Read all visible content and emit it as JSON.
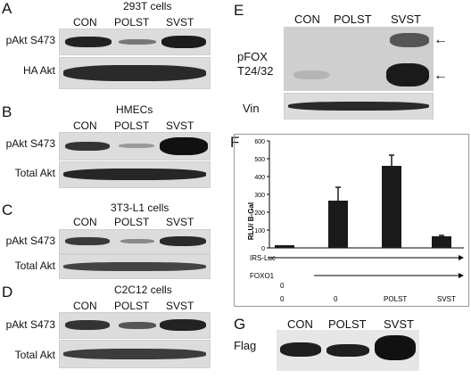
{
  "panels": {
    "A": {
      "letter": "A",
      "title": "293T cells",
      "cols": [
        "CON",
        "POLST",
        "SVST"
      ],
      "rows": [
        "pAkt S473",
        "HA Akt"
      ]
    },
    "B": {
      "letter": "B",
      "title": "HMECs",
      "cols": [
        "CON",
        "POLST",
        "SVST"
      ],
      "rows": [
        "pAkt S473",
        "Total Akt"
      ]
    },
    "C": {
      "letter": "C",
      "title": "3T3-L1 cells",
      "cols": [
        "CON",
        "POLST",
        "SVST"
      ],
      "rows": [
        "pAkt S473",
        "Total Akt"
      ]
    },
    "D": {
      "letter": "D",
      "title": "C2C12 cells",
      "cols": [
        "CON",
        "POLST",
        "SVST"
      ],
      "rows": [
        "pAkt S473",
        "Total Akt"
      ]
    },
    "E": {
      "letter": "E",
      "cols": [
        "CON",
        "POLST",
        "SVST"
      ],
      "row_top": "pFOX",
      "row_top2": "T24/32",
      "row_bottom": "Vin"
    },
    "F": {
      "letter": "F"
    },
    "G": {
      "letter": "G",
      "cols": [
        "CON",
        "POLST",
        "SVST"
      ],
      "row": "Flag"
    }
  },
  "chart_data": {
    "type": "bar",
    "ylabel": "RLU/ B-Gal",
    "ylim": [
      0,
      600
    ],
    "yticks": [
      0,
      100,
      200,
      300,
      400,
      500,
      600
    ],
    "values": [
      15,
      265,
      460,
      65
    ],
    "errors": [
      0,
      75,
      60,
      5
    ],
    "annotations": {
      "row1_label": "IRS-Luc",
      "row2_label": "FOXO1",
      "row2_first": "0",
      "row3": [
        "0",
        "0",
        "POLST",
        "SVST"
      ]
    }
  }
}
